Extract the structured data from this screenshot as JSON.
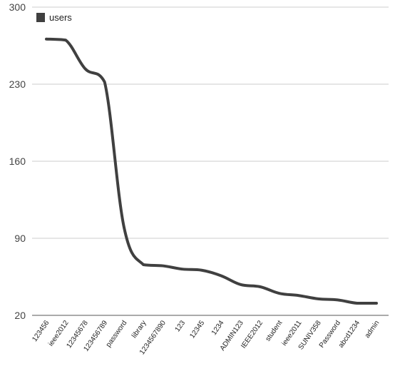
{
  "chart_data": {
    "type": "line",
    "title": "",
    "xlabel": "",
    "ylabel": "",
    "categories": [
      "123456",
      "ieee2012",
      "12345678",
      "123456789",
      "password",
      "library",
      "1234567890",
      "123",
      "12345",
      "1234",
      "ADMIN123",
      "IEEE2012",
      "student",
      "ieee2011",
      "SUNIV358",
      "Password",
      "abcd1234",
      "admin"
    ],
    "series": [
      {
        "name": "users",
        "color": "#404040",
        "values": [
          271,
          270,
          244,
          232,
          100,
          66,
          65,
          62,
          61,
          56,
          48,
          46,
          40,
          38,
          35,
          34,
          31,
          31
        ]
      }
    ],
    "ylim": [
      20,
      300
    ],
    "yticks": [
      20,
      90,
      160,
      230,
      300
    ],
    "grid": true,
    "legend": "top-left",
    "smooth": true
  }
}
